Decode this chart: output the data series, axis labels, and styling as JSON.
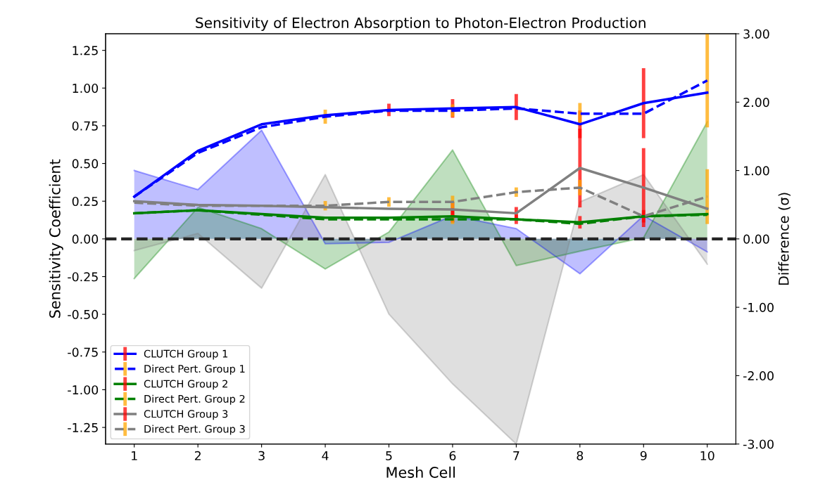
{
  "chart_data": {
    "type": "line",
    "title": "Sensitivity of Electron Absorption to Photon-Electron Production",
    "xlabel": "Mesh Cell",
    "ylabel": "Sensitivity Coefficient",
    "y2label": "Difference (σ)",
    "x": [
      1,
      2,
      3,
      4,
      5,
      6,
      7,
      8,
      9,
      10
    ],
    "xlim": [
      0.55,
      10.45
    ],
    "xticks": [
      1,
      2,
      3,
      4,
      5,
      6,
      7,
      8,
      9,
      10
    ],
    "ylim": [
      -1.36,
      1.36
    ],
    "yticks": [
      {
        "value": -1.25,
        "label": "-1.25"
      },
      {
        "value": -1.0,
        "label": "-1.00"
      },
      {
        "value": -0.75,
        "label": "-0.75"
      },
      {
        "value": -0.5,
        "label": "-0.50"
      },
      {
        "value": -0.25,
        "label": "-0.25"
      },
      {
        "value": 0,
        "label": "0.00"
      },
      {
        "value": 0.25,
        "label": "0.25"
      },
      {
        "value": 0.5,
        "label": "0.50"
      },
      {
        "value": 0.75,
        "label": "0.75"
      },
      {
        "value": 1.0,
        "label": "1.00"
      },
      {
        "value": 1.25,
        "label": "1.25"
      }
    ],
    "y2lim": [
      -3,
      3
    ],
    "y2ticks": [
      {
        "value": -3,
        "label": "-3.00"
      },
      {
        "value": -2,
        "label": "-2.00"
      },
      {
        "value": -1,
        "label": "-1.00"
      },
      {
        "value": 0,
        "label": "0.00"
      },
      {
        "value": 1,
        "label": "1.00"
      },
      {
        "value": 2,
        "label": "2.00"
      },
      {
        "value": 3,
        "label": "3.00"
      }
    ],
    "series": [
      {
        "type": "area",
        "axis": "y2",
        "color": "#0000ff",
        "values": [
          1.0,
          0.72,
          1.59,
          -0.07,
          -0.05,
          0.34,
          0.15,
          -0.51,
          0.34,
          -0.19
        ]
      },
      {
        "type": "area",
        "axis": "y2",
        "color": "#008000",
        "values": [
          -0.58,
          0.46,
          0.15,
          -0.44,
          0.1,
          1.3,
          -0.39,
          -0.18,
          0.02,
          1.71
        ]
      },
      {
        "type": "area",
        "axis": "y2",
        "color": "#808080",
        "values": [
          -0.17,
          0.08,
          -0.72,
          0.94,
          -1.1,
          -2.12,
          -3.0,
          0.54,
          0.94,
          -0.37
        ]
      },
      {
        "name": "CLUTCH Group 1",
        "color": "#0000ff",
        "line_style": "solid",
        "values": [
          0.28,
          0.584,
          0.76,
          0.82,
          0.855,
          0.865,
          0.874,
          0.76,
          0.9,
          0.97
        ],
        "errors": [
          null,
          null,
          null,
          null,
          0.03,
          0.05,
          0.075,
          0.08,
          0.22,
          null
        ]
      },
      {
        "name": "Direct Pert. Group 1",
        "color": "#0000ff",
        "line_style": "dashed",
        "values": [
          0.28,
          0.57,
          0.74,
          0.81,
          0.85,
          0.85,
          0.865,
          0.83,
          0.83,
          1.05
        ],
        "errors": [
          null,
          null,
          null,
          0.035,
          null,
          0.03,
          null,
          0.06,
          null,
          0.3
        ]
      },
      {
        "name": "CLUTCH Group 2",
        "color": "#008000",
        "line_style": "solid",
        "values": [
          0.17,
          0.19,
          0.165,
          0.14,
          0.14,
          0.15,
          0.13,
          0.11,
          0.15,
          0.165
        ],
        "errors": [
          null,
          null,
          null,
          null,
          null,
          0.03,
          0.02,
          0.03,
          0.03,
          null
        ]
      },
      {
        "name": "Direct Pert. Group 2",
        "color": "#008000",
        "line_style": "dashed",
        "values": [
          0.17,
          0.19,
          0.16,
          0.13,
          0.13,
          0.13,
          0.13,
          0.1,
          0.15,
          0.16
        ],
        "errors": [
          null,
          null,
          null,
          null,
          null,
          0.02,
          null,
          null,
          null,
          null
        ]
      },
      {
        "name": "CLUTCH Group 3",
        "color": "#808080",
        "line_style": "solid",
        "values": [
          0.25,
          0.225,
          0.22,
          0.21,
          0.2,
          0.195,
          0.17,
          0.47,
          0.34,
          0.2
        ],
        "errors": [
          null,
          null,
          null,
          null,
          null,
          0.04,
          0.03,
          0.25,
          0.25,
          null
        ]
      },
      {
        "name": "Direct Pert. Group 3",
        "color": "#808080",
        "line_style": "dashed",
        "values": [
          0.24,
          0.22,
          0.22,
          0.22,
          0.245,
          0.245,
          0.31,
          0.34,
          0.15,
          0.28
        ],
        "errors": [
          null,
          null,
          null,
          0.02,
          0.02,
          0.03,
          0.02,
          0.04,
          null,
          0.17
        ]
      }
    ],
    "ref_lines": [
      {
        "axis": "y",
        "value": 0,
        "color": "#262626",
        "line_style": "dashed"
      }
    ],
    "legend": "bottom left",
    "grid": false,
    "marker": "none"
  }
}
